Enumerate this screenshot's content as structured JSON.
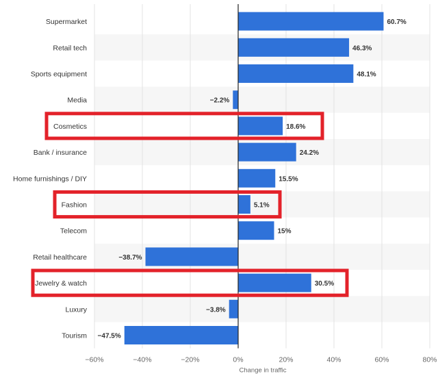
{
  "chart_data": {
    "type": "bar",
    "orientation": "horizontal",
    "categories": [
      "Supermarket",
      "Retail tech",
      "Sports equipment",
      "Media",
      "Cosmetics",
      "Bank / insurance",
      "Home furnishings / DIY",
      "Fashion",
      "Telecom",
      "Retail healthcare",
      "Jewelry & watch",
      "Luxury",
      "Tourism"
    ],
    "values": [
      60.7,
      46.3,
      48.1,
      -2.2,
      18.6,
      24.2,
      15.5,
      5.1,
      15,
      -38.7,
      30.5,
      -3.8,
      -47.5
    ],
    "value_labels": [
      "60.7%",
      "46.3%",
      "48.1%",
      "−2.2%",
      "18.6%",
      "24.2%",
      "15.5%",
      "5.1%",
      "15%",
      "−38.7%",
      "30.5%",
      "−3.8%",
      "−47.5%"
    ],
    "highlighted_categories": [
      "Cosmetics",
      "Fashion",
      "Jewelry & watch"
    ],
    "xlabel": "Change in traffic",
    "ylabel": "",
    "xlim": [
      -60,
      80
    ],
    "xticks": [
      -60,
      -40,
      -20,
      0,
      20,
      40,
      60,
      80
    ],
    "xtick_labels": [
      "−60%",
      "−40%",
      "−20%",
      "0%",
      "20%",
      "40%",
      "60%",
      "80%"
    ],
    "grid": true,
    "alternating_row_bands": true,
    "colors": {
      "bar": "#2f72d9",
      "highlight_box": "#e3222a",
      "band": "#f6f6f6",
      "grid": "#e3e3e3",
      "zero_line": "#222222"
    }
  }
}
